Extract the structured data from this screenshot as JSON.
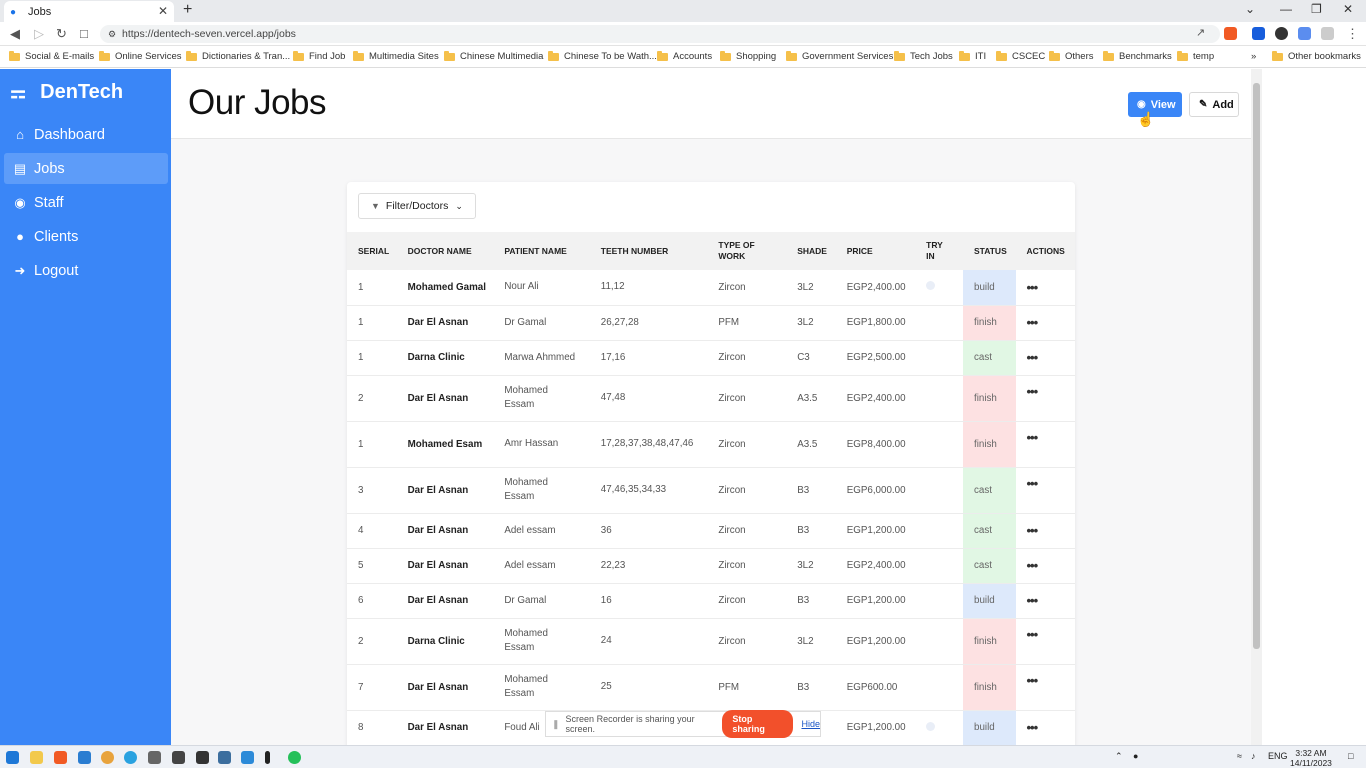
{
  "browser": {
    "tab_title": "Jobs",
    "url": "https://dentech-seven.vercel.app/jobs",
    "bookmarks": [
      "Social & E-mails",
      "Online Services",
      "Dictionaries & Tran...",
      "Find Job",
      "Multimedia Sites",
      "Chinese Multimedia",
      "Chinese To be Wath...",
      "Accounts",
      "Shopping",
      "Government Services",
      "Tech Jobs",
      "ITI",
      "CSCEC",
      "Others",
      "Benchmarks",
      "temp"
    ],
    "other_bookmarks": "Other bookmarks"
  },
  "app": {
    "brand": "DenTech",
    "nav": [
      {
        "label": "Dashboard",
        "icon": "home-icon"
      },
      {
        "label": "Jobs",
        "icon": "clipboard-icon"
      },
      {
        "label": "Staff",
        "icon": "users-icon"
      },
      {
        "label": "Clients",
        "icon": "user-icon"
      },
      {
        "label": "Logout",
        "icon": "logout-icon"
      }
    ],
    "active_nav": "Jobs"
  },
  "page": {
    "title": "Our Jobs",
    "view_label": "View",
    "add_label": "Add",
    "filter_label": "Filter/Doctors"
  },
  "table": {
    "headers": [
      "SERIAL",
      "DOCTOR NAME",
      "PATIENT NAME",
      "TEETH NUMBER",
      "TYPE OF WORK",
      "SHADE",
      "PRICE",
      "TRY IN",
      "STATUS",
      "ACTIONS"
    ],
    "rows": [
      {
        "serial": "1",
        "doctor": "Mohamed Gamal",
        "patient": "Nour Ali",
        "teeth": "11,12",
        "work": "Zircon",
        "shade": "3L2",
        "price": "EGP2,400.00",
        "tryin": true,
        "status": "build"
      },
      {
        "serial": "1",
        "doctor": "Dar El Asnan",
        "patient": "Dr Gamal",
        "teeth": "26,27,28",
        "work": "PFM",
        "shade": "3L2",
        "price": "EGP1,800.00",
        "tryin": false,
        "status": "finish"
      },
      {
        "serial": "1",
        "doctor": "Darna Clinic",
        "patient": "Marwa Ahmmed",
        "teeth": "17,16",
        "work": "Zircon",
        "shade": "C3",
        "price": "EGP2,500.00",
        "tryin": false,
        "status": "cast"
      },
      {
        "serial": "2",
        "doctor": "Dar El Asnan",
        "patient": "Mohamed Essam",
        "teeth": "47,48",
        "work": "Zircon",
        "shade": "A3.5",
        "price": "EGP2,400.00",
        "tryin": false,
        "status": "finish"
      },
      {
        "serial": "1",
        "doctor": "Mohamed Esam",
        "patient": "Amr Hassan",
        "teeth": "17,28,37,38,48,47,46",
        "work": "Zircon",
        "shade": "A3.5",
        "price": "EGP8,400.00",
        "tryin": false,
        "status": "finish"
      },
      {
        "serial": "3",
        "doctor": "Dar El Asnan",
        "patient": "Mohamed Essam",
        "teeth": "47,46,35,34,33",
        "work": "Zircon",
        "shade": "B3",
        "price": "EGP6,000.00",
        "tryin": false,
        "status": "cast"
      },
      {
        "serial": "4",
        "doctor": "Dar El Asnan",
        "patient": "Adel essam",
        "teeth": "36",
        "work": "Zircon",
        "shade": "B3",
        "price": "EGP1,200.00",
        "tryin": false,
        "status": "cast"
      },
      {
        "serial": "5",
        "doctor": "Dar El Asnan",
        "patient": "Adel essam",
        "teeth": "22,23",
        "work": "Zircon",
        "shade": "3L2",
        "price": "EGP2,400.00",
        "tryin": false,
        "status": "cast"
      },
      {
        "serial": "6",
        "doctor": "Dar El Asnan",
        "patient": "Dr Gamal",
        "teeth": "16",
        "work": "Zircon",
        "shade": "B3",
        "price": "EGP1,200.00",
        "tryin": false,
        "status": "build"
      },
      {
        "serial": "2",
        "doctor": "Darna Clinic",
        "patient": "Mohamed Essam",
        "teeth": "24",
        "work": "Zircon",
        "shade": "3L2",
        "price": "EGP1,200.00",
        "tryin": false,
        "status": "finish"
      },
      {
        "serial": "7",
        "doctor": "Dar El Asnan",
        "patient": "Mohamed Essam",
        "teeth": "25",
        "work": "PFM",
        "shade": "B3",
        "price": "EGP600.00",
        "tryin": false,
        "status": "finish"
      },
      {
        "serial": "8",
        "doctor": "Dar El Asnan",
        "patient": "Foud Ali",
        "teeth": "",
        "work": "",
        "shade": "",
        "price": "EGP1,200.00",
        "tryin": true,
        "status": "build"
      }
    ]
  },
  "recorder": {
    "message": "Screen Recorder is sharing your screen.",
    "stop_label": "Stop sharing",
    "hide_label": "Hide"
  },
  "taskbar": {
    "lang": "ENG",
    "time": "3:32 AM",
    "date": "14/11/2023"
  },
  "colors": {
    "accent": "#3a86f7",
    "build": "#dde9fb",
    "finish": "#fde1e2",
    "cast": "#e1f7e4"
  }
}
